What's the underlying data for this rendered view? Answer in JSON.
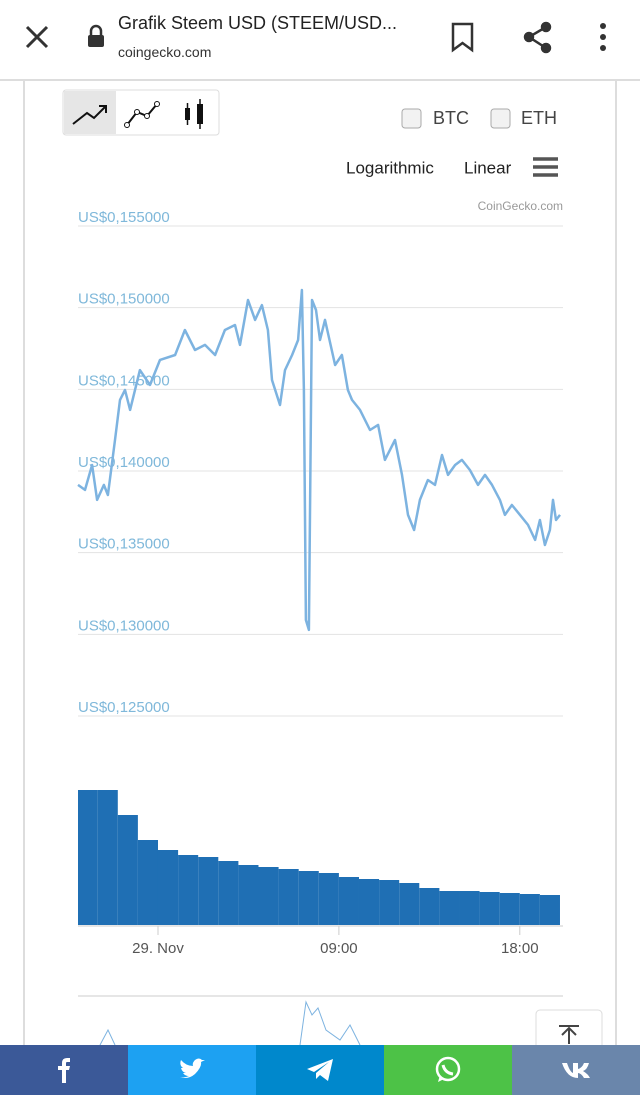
{
  "browser": {
    "title": "Grafik Steem USD (STEEM/USD...",
    "url": "coingecko.com"
  },
  "chart_options": {
    "compare": [
      "BTC",
      "ETH"
    ],
    "scales": [
      "Logarithmic",
      "Linear"
    ],
    "credit": "CoinGecko.com"
  },
  "chart_data": [
    {
      "type": "line",
      "color": "#7db3e0",
      "grid": true,
      "x": [
        -3.98,
        -3.63,
        -3.28,
        -3.03,
        -2.69,
        -2.49,
        -2.14,
        -1.89,
        -1.64,
        -1.39,
        -0.9,
        -0.4,
        0.1,
        0.85,
        1.34,
        1.84,
        2.34,
        2.84,
        3.33,
        3.83,
        4.08,
        4.48,
        4.83,
        5.17,
        5.47,
        5.67,
        6.07,
        6.32,
        6.67,
        6.97,
        7.16,
        7.26,
        7.36,
        7.51,
        7.66,
        7.86,
        8.06,
        8.31,
        8.81,
        9.15,
        9.45,
        9.65,
        10.05,
        10.55,
        10.95,
        11.29,
        11.79,
        12.14,
        12.44,
        12.74,
        13.03,
        13.43,
        13.78,
        14.13,
        14.43,
        14.78,
        15.12,
        15.52,
        15.92,
        16.27,
        16.62,
        17.01,
        17.26,
        17.61,
        18.01,
        18.41,
        18.76,
        19.0,
        19.25,
        19.5,
        19.65,
        19.8,
        20.0
      ],
      "values": [
        0.13915,
        0.13884,
        0.14037,
        0.13823,
        0.13915,
        0.13853,
        0.1419,
        0.14435,
        0.14496,
        0.14374,
        0.14618,
        0.14527,
        0.1468,
        0.1471,
        0.14863,
        0.14741,
        0.14772,
        0.1471,
        0.14863,
        0.14894,
        0.14772,
        0.15047,
        0.14925,
        0.15016,
        0.14863,
        0.14557,
        0.14404,
        0.14618,
        0.1471,
        0.14802,
        0.15108,
        0.14496,
        0.13088,
        0.13027,
        0.15047,
        0.14986,
        0.14802,
        0.14925,
        0.14649,
        0.1471,
        0.14496,
        0.14435,
        0.14374,
        0.14251,
        0.14282,
        0.14068,
        0.1419,
        0.13976,
        0.13731,
        0.13639,
        0.13823,
        0.13945,
        0.13915,
        0.14098,
        0.13976,
        0.14037,
        0.14068,
        0.14006,
        0.13915,
        0.13976,
        0.13915,
        0.13823,
        0.13731,
        0.13792,
        0.13731,
        0.1367,
        0.13578,
        0.137,
        0.13547,
        0.13639,
        0.13823,
        0.137,
        0.13731
      ],
      "xlim": [
        -3.98,
        20.15
      ],
      "ylim": [
        0.125,
        0.155
      ],
      "yticks": [
        {
          "value": 0.155,
          "label": "US$0,155000"
        },
        {
          "value": 0.15,
          "label": "US$0,150000"
        },
        {
          "value": 0.145,
          "label": "US$0,145000"
        },
        {
          "value": 0.14,
          "label": "US$0,140000"
        },
        {
          "value": 0.135,
          "label": "US$0,135000"
        },
        {
          "value": 0.13,
          "label": "US$0,130000"
        },
        {
          "value": 0.125,
          "label": "US$0,125000"
        }
      ]
    },
    {
      "type": "bar",
      "color": "#1f6fb4",
      "x": [
        -4,
        -3,
        -2,
        -1,
        0,
        1,
        2,
        3,
        4,
        5,
        6,
        7,
        8,
        9,
        10,
        11,
        12,
        13,
        14,
        15,
        16,
        17,
        18,
        19
      ],
      "values": [
        135,
        135,
        110,
        85,
        75,
        70,
        68,
        64,
        60,
        58,
        56,
        54,
        52,
        48,
        46,
        45,
        42,
        37,
        34,
        34,
        33,
        32,
        31,
        30
      ],
      "xlim": [
        -3.98,
        20.15
      ],
      "ylim": [
        0,
        135
      ],
      "xticks": [
        {
          "value": 0,
          "label": "29. Nov"
        },
        {
          "value": 9,
          "label": "09:00"
        },
        {
          "value": 18,
          "label": "18:00"
        }
      ]
    }
  ]
}
